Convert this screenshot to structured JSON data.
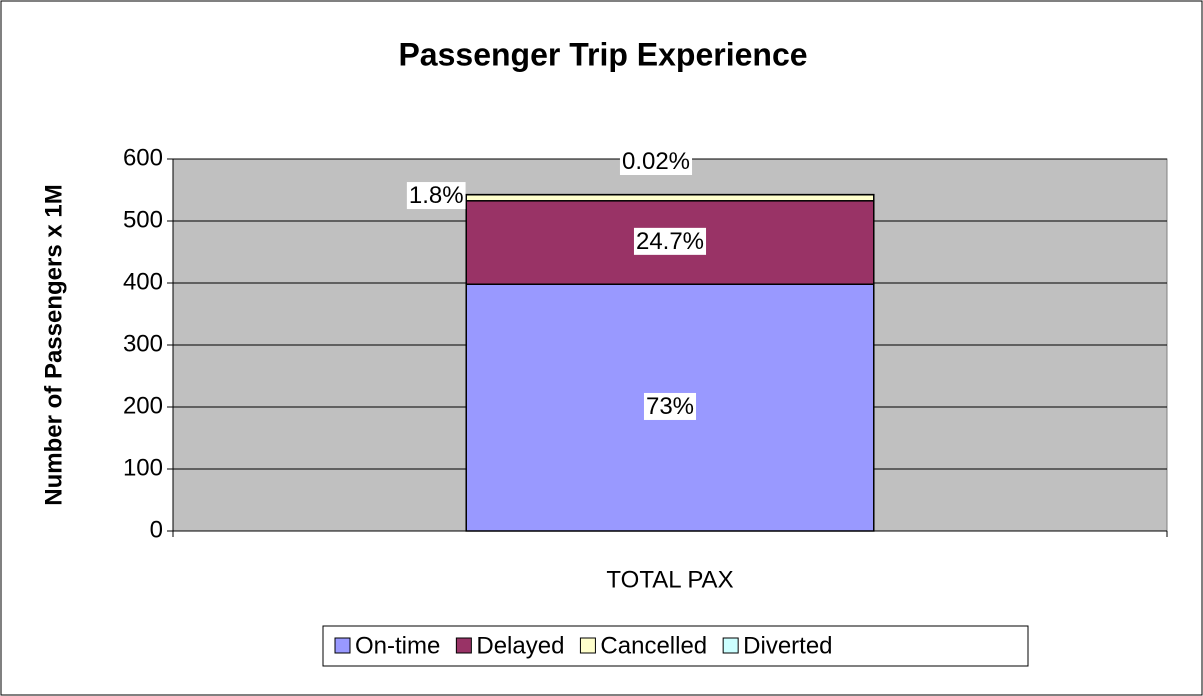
{
  "chart_data": {
    "type": "stacked_bar",
    "title": "Passenger Trip Experience",
    "y_label": "Number of Passengers x 1M",
    "categories": [
      "TOTAL PAX"
    ],
    "series": [
      {
        "name": "On-time",
        "color": "#9999ff",
        "values": [
          398
        ],
        "value_labels": [
          "73%"
        ]
      },
      {
        "name": "Delayed",
        "color": "#993366",
        "values": [
          134.6
        ],
        "value_labels": [
          "24.7%"
        ]
      },
      {
        "name": "Cancelled",
        "color": "#ffffcc",
        "values": [
          9.8
        ],
        "value_labels": [
          "1.8%"
        ]
      },
      {
        "name": "Diverted",
        "color": "#ccffff",
        "values": [
          0.1
        ],
        "value_labels": [
          "0.02%"
        ]
      }
    ],
    "ylim": [
      0,
      600
    ],
    "yticks": [
      0,
      100,
      200,
      300,
      400,
      500,
      600
    ],
    "grid": true,
    "plot_background": "#c0c0c0",
    "legend": "bottom"
  }
}
